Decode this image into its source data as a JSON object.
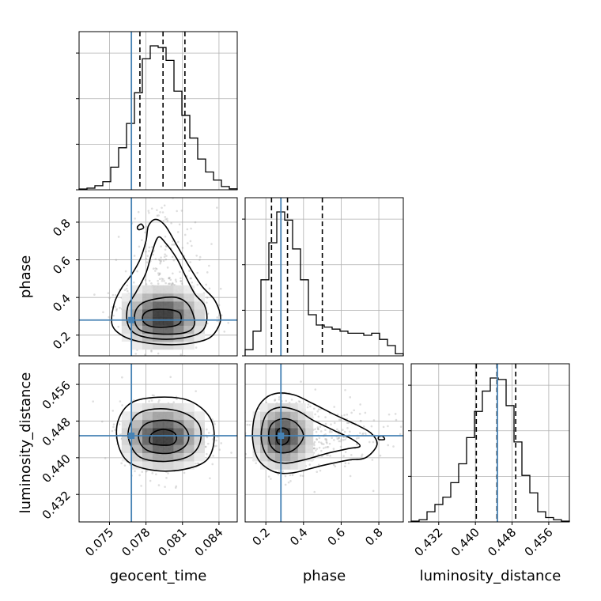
{
  "chart_data": {
    "type": "corner",
    "parameters": [
      "geocent_time",
      "phase",
      "luminosity_distance"
    ],
    "axis_labels": {
      "geocent_time": "geocent_time",
      "phase": "phase",
      "luminosity_distance": "luminosity_distance"
    },
    "ranges": {
      "geocent_time": [
        0.0725,
        0.0855
      ],
      "phase": [
        0.09,
        0.93
      ],
      "luminosity_distance": [
        0.426,
        0.4605
      ]
    },
    "ticks": {
      "geocent_time": [
        0.075,
        0.078,
        0.081,
        0.084
      ],
      "phase": [
        0.2,
        0.4,
        0.6,
        0.8
      ],
      "luminosity_distance": [
        0.432,
        0.44,
        0.448,
        0.456
      ]
    },
    "tick_labels": {
      "geocent_time": [
        "0.075",
        "0.078",
        "0.081",
        "0.084"
      ],
      "phase": [
        "0.2",
        "0.4",
        "0.6",
        "0.8"
      ],
      "luminosity_distance": [
        "0.432",
        "0.440",
        "0.448",
        "0.456"
      ]
    },
    "truths": {
      "geocent_time": 0.0768,
      "phase": 0.28,
      "luminosity_distance": 0.4448
    },
    "quantiles": {
      "geocent_time": [
        0.0775,
        0.0794,
        0.0812
      ],
      "phase": [
        0.23,
        0.315,
        0.5
      ],
      "luminosity_distance": [
        0.4402,
        0.4447,
        0.4488
      ]
    },
    "marginals": {
      "geocent_time": {
        "bin_edges": [
          0.0725,
          0.07315,
          0.0738,
          0.07445,
          0.0751,
          0.07575,
          0.0764,
          0.07705,
          0.0777,
          0.07835,
          0.079,
          0.07965,
          0.0803,
          0.08095,
          0.0816,
          0.08225,
          0.0829,
          0.08355,
          0.0842,
          0.08485,
          0.0855
        ],
        "counts": [
          0.5,
          1.0,
          2.5,
          5,
          14,
          26,
          41,
          60,
          81,
          89,
          88,
          80,
          61,
          46,
          32,
          19,
          11,
          6,
          2,
          0.6
        ]
      },
      "phase": {
        "bin_edges": [
          0.09,
          0.132,
          0.174,
          0.216,
          0.258,
          0.3,
          0.342,
          0.384,
          0.426,
          0.468,
          0.51,
          0.552,
          0.594,
          0.636,
          0.678,
          0.72,
          0.762,
          0.804,
          0.846,
          0.888,
          0.93
        ],
        "counts": [
          3,
          12,
          37,
          55,
          70,
          66,
          52,
          37,
          20,
          15,
          14,
          13,
          12,
          11,
          11,
          10,
          11,
          8,
          5,
          1
        ]
      },
      "luminosity_distance": {
        "bin_edges": [
          0.426,
          0.427725,
          0.42945,
          0.431175,
          0.4329,
          0.434625,
          0.43635,
          0.438075,
          0.4398,
          0.441525,
          0.44325,
          0.444975,
          0.4467,
          0.448425,
          0.45015,
          0.451875,
          0.4536,
          0.455325,
          0.45705,
          0.458775,
          0.4605
        ],
        "counts": [
          0.5,
          1.5,
          7,
          12,
          17,
          27,
          40,
          58,
          76,
          90,
          99,
          98,
          80,
          55,
          32,
          20,
          7,
          3,
          1.5,
          0.5
        ]
      }
    },
    "joint": [
      {
        "x": "geocent_time",
        "y": "phase",
        "center": [
          0.0794,
          0.295
        ],
        "spread": [
          0.0017,
          0.085
        ],
        "contours": [
          [
            [
              0.0778,
              0.27
            ],
            [
              0.0785,
              0.245
            ],
            [
              0.08,
              0.245
            ],
            [
              0.0808,
              0.265
            ],
            [
              0.0808,
              0.315
            ],
            [
              0.08,
              0.335
            ],
            [
              0.0785,
              0.335
            ],
            [
              0.0778,
              0.31
            ]
          ],
          [
            [
              0.0772,
              0.25
            ],
            [
              0.078,
              0.215
            ],
            [
              0.08,
              0.205
            ],
            [
              0.0815,
              0.22
            ],
            [
              0.082,
              0.27
            ],
            [
              0.0815,
              0.36
            ],
            [
              0.0805,
              0.4
            ],
            [
              0.079,
              0.395
            ],
            [
              0.0777,
              0.37
            ],
            [
              0.0771,
              0.32
            ]
          ],
          [
            [
              0.0765,
              0.26
            ],
            [
              0.0772,
              0.205
            ],
            [
              0.079,
              0.18
            ],
            [
              0.081,
              0.185
            ],
            [
              0.0825,
              0.215
            ],
            [
              0.083,
              0.28
            ],
            [
              0.0828,
              0.36
            ],
            [
              0.082,
              0.42
            ],
            [
              0.0812,
              0.52
            ],
            [
              0.0805,
              0.61
            ],
            [
              0.0796,
              0.69
            ],
            [
              0.079,
              0.72
            ],
            [
              0.0785,
              0.64
            ],
            [
              0.078,
              0.53
            ],
            [
              0.0772,
              0.43
            ],
            [
              0.0765,
              0.35
            ]
          ],
          [
            [
              0.0752,
              0.26
            ],
            [
              0.076,
              0.2
            ],
            [
              0.0775,
              0.165
            ],
            [
              0.0795,
              0.15
            ],
            [
              0.0815,
              0.155
            ],
            [
              0.0832,
              0.185
            ],
            [
              0.084,
              0.25
            ],
            [
              0.0841,
              0.31
            ],
            [
              0.0836,
              0.39
            ],
            [
              0.0826,
              0.46
            ],
            [
              0.0816,
              0.56
            ],
            [
              0.0806,
              0.67
            ],
            [
              0.0796,
              0.78
            ],
            [
              0.0788,
              0.815
            ],
            [
              0.0782,
              0.78
            ],
            [
              0.078,
              0.7
            ],
            [
              0.0775,
              0.6
            ],
            [
              0.0768,
              0.52
            ],
            [
              0.076,
              0.45
            ],
            [
              0.0754,
              0.37
            ]
          ],
          [
            [
              0.0773,
              0.775
            ],
            [
              0.0774,
              0.76
            ],
            [
              0.0778,
              0.77
            ],
            [
              0.0776,
              0.79
            ]
          ]
        ]
      },
      {
        "x": "geocent_time",
        "y": "luminosity_distance",
        "center": [
          0.0794,
          0.4447
        ],
        "spread": [
          0.0017,
          0.0036
        ],
        "contours": [
          [
            [
              0.0785,
              0.443
            ],
            [
              0.08,
              0.4428
            ],
            [
              0.0805,
              0.444
            ],
            [
              0.0803,
              0.4455
            ],
            [
              0.0794,
              0.4462
            ],
            [
              0.0786,
              0.4455
            ],
            [
              0.0783,
              0.4442
            ]
          ],
          [
            [
              0.0776,
              0.4428
            ],
            [
              0.0784,
              0.4413
            ],
            [
              0.08,
              0.441
            ],
            [
              0.0812,
              0.4425
            ],
            [
              0.0815,
              0.445
            ],
            [
              0.0808,
              0.4475
            ],
            [
              0.0794,
              0.4482
            ],
            [
              0.078,
              0.4474
            ],
            [
              0.0774,
              0.4452
            ]
          ],
          [
            [
              0.0767,
              0.443
            ],
            [
              0.0776,
              0.44
            ],
            [
              0.0796,
              0.4392
            ],
            [
              0.0815,
              0.4403
            ],
            [
              0.0824,
              0.443
            ],
            [
              0.0824,
              0.447
            ],
            [
              0.0812,
              0.4497
            ],
            [
              0.0792,
              0.4507
            ],
            [
              0.0774,
              0.4497
            ],
            [
              0.0766,
              0.4465
            ]
          ],
          [
            [
              0.0757,
              0.443
            ],
            [
              0.0766,
              0.439
            ],
            [
              0.0788,
              0.4372
            ],
            [
              0.0812,
              0.4375
            ],
            [
              0.083,
              0.4395
            ],
            [
              0.0836,
              0.444
            ],
            [
              0.0832,
              0.449
            ],
            [
              0.0815,
              0.4525
            ],
            [
              0.079,
              0.4532
            ],
            [
              0.0768,
              0.452
            ],
            [
              0.0757,
              0.448
            ]
          ]
        ]
      },
      {
        "x": "phase",
        "y": "luminosity_distance",
        "center": [
          0.29,
          0.4447
        ],
        "spread": [
          0.08,
          0.0036
        ],
        "contours": [
          [
            [
              0.26,
              0.4435
            ],
            [
              0.29,
              0.4428
            ],
            [
              0.32,
              0.4438
            ],
            [
              0.32,
              0.4458
            ],
            [
              0.29,
              0.4465
            ],
            [
              0.26,
              0.4458
            ]
          ],
          [
            [
              0.22,
              0.4432
            ],
            [
              0.26,
              0.4413
            ],
            [
              0.32,
              0.4412
            ],
            [
              0.37,
              0.4425
            ],
            [
              0.4,
              0.4448
            ],
            [
              0.37,
              0.4472
            ],
            [
              0.32,
              0.4484
            ],
            [
              0.26,
              0.4482
            ],
            [
              0.22,
              0.4465
            ]
          ],
          [
            [
              0.18,
              0.443
            ],
            [
              0.22,
              0.4398
            ],
            [
              0.3,
              0.4388
            ],
            [
              0.4,
              0.4395
            ],
            [
              0.53,
              0.441
            ],
            [
              0.64,
              0.442
            ],
            [
              0.7,
              0.4425
            ],
            [
              0.66,
              0.444
            ],
            [
              0.56,
              0.446
            ],
            [
              0.45,
              0.4482
            ],
            [
              0.37,
              0.4502
            ],
            [
              0.28,
              0.451
            ],
            [
              0.21,
              0.4498
            ],
            [
              0.18,
              0.4468
            ]
          ],
          [
            [
              0.13,
              0.444
            ],
            [
              0.16,
              0.4396
            ],
            [
              0.24,
              0.437
            ],
            [
              0.34,
              0.4367
            ],
            [
              0.5,
              0.4383
            ],
            [
              0.64,
              0.4395
            ],
            [
              0.73,
              0.44
            ],
            [
              0.79,
              0.4428
            ],
            [
              0.76,
              0.4453
            ],
            [
              0.68,
              0.4472
            ],
            [
              0.56,
              0.4495
            ],
            [
              0.45,
              0.4518
            ],
            [
              0.35,
              0.4537
            ],
            [
              0.25,
              0.454
            ],
            [
              0.18,
              0.4523
            ],
            [
              0.14,
              0.449
            ]
          ],
          [
            [
              0.8,
              0.444
            ],
            [
              0.83,
              0.444
            ],
            [
              0.82,
              0.4447
            ],
            [
              0.8,
              0.4446
            ]
          ]
        ]
      }
    ]
  }
}
